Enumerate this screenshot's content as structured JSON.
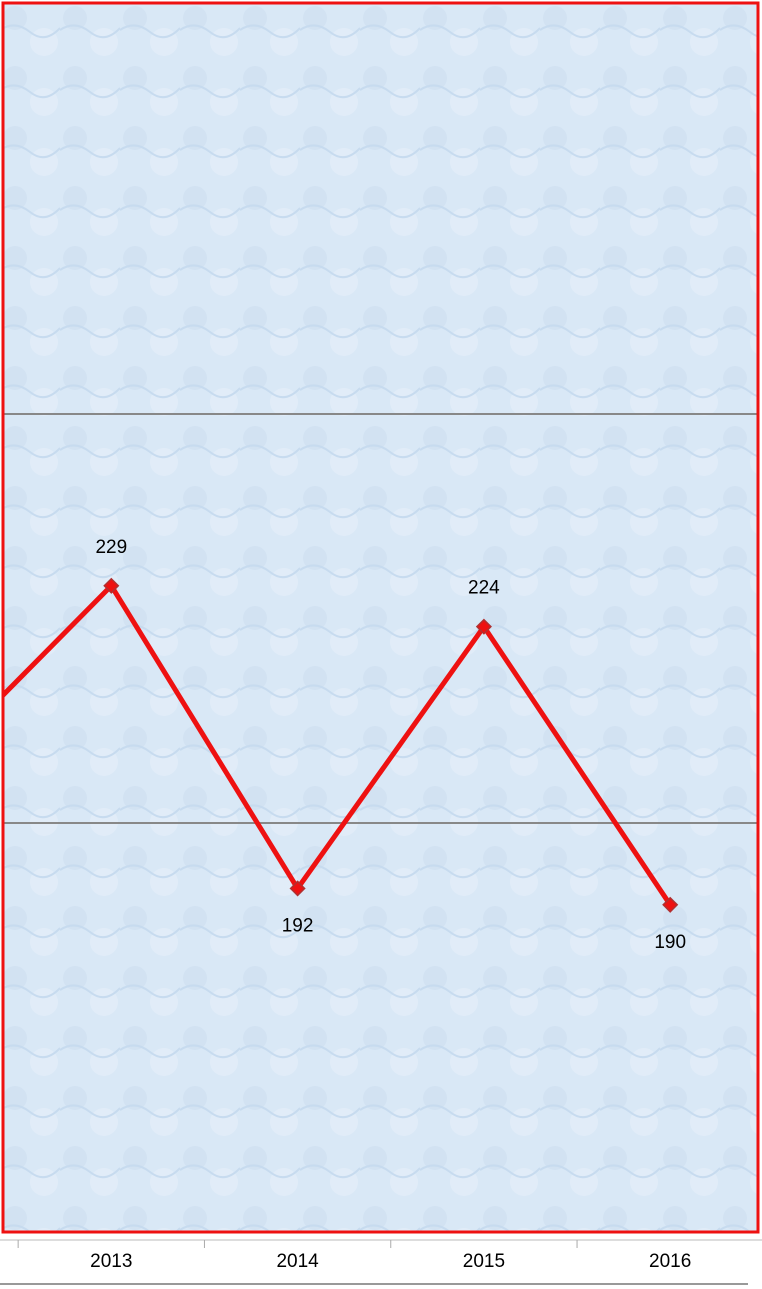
{
  "chart_data": {
    "type": "line",
    "categories": [
      null,
      "2013",
      "2014",
      "2015",
      "2016"
    ],
    "series": [
      {
        "color": "#ee1111",
        "values": [
          206,
          229,
          192,
          224,
          190
        ]
      }
    ],
    "ylim": [
      150,
      300
    ],
    "yticks": [
      200,
      250
    ],
    "grid": true
  }
}
